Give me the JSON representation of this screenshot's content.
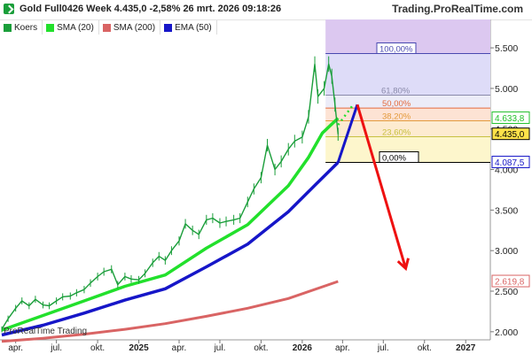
{
  "header": {
    "title": "Gold Full0426 Week 4.435,0 -2,58% 26 mrt. 2026 09:18:26",
    "brand": "Trading.ProRealTime.com"
  },
  "legend": [
    {
      "label": "Koers",
      "color": "#1a9e3a"
    },
    {
      "label": "SMA (20)",
      "color": "#22e02c"
    },
    {
      "label": "SMA (200)",
      "color": "#d96464"
    },
    {
      "label": "EMA (50)",
      "color": "#1616c8"
    }
  ],
  "footer": {
    "note": "ProRealTime Trading"
  },
  "chart_data": {
    "type": "line",
    "y_axis": {
      "ticks": [
        {
          "v": 2000,
          "label": "2.000"
        },
        {
          "v": 2500,
          "label": "2.500"
        },
        {
          "v": 3000,
          "label": "3.000"
        },
        {
          "v": 3500,
          "label": "3.500"
        },
        {
          "v": 4000,
          "label": "4.000"
        },
        {
          "v": 4500,
          "label": "4.500"
        },
        {
          "v": 5000,
          "label": "5.000"
        },
        {
          "v": 5500,
          "label": "5.500"
        }
      ],
      "range": [
        1900,
        5850
      ]
    },
    "x_axis": {
      "range": [
        "2024-02-26",
        "2027-02-25"
      ],
      "ticks": [
        {
          "date": "2024-04-01",
          "label": "apr.",
          "bold": false
        },
        {
          "date": "2024-07-01",
          "label": "jul.",
          "bold": false
        },
        {
          "date": "2024-10-01",
          "label": "okt.",
          "bold": false
        },
        {
          "date": "2025-01-01",
          "label": "2025",
          "bold": true
        },
        {
          "date": "2025-04-01",
          "label": "apr.",
          "bold": false
        },
        {
          "date": "2025-07-01",
          "label": "jul.",
          "bold": false
        },
        {
          "date": "2025-10-01",
          "label": "okt.",
          "bold": false
        },
        {
          "date": "2026-01-01",
          "label": "2026",
          "bold": true
        },
        {
          "date": "2026-04-01",
          "label": "apr.",
          "bold": false
        },
        {
          "date": "2026-07-01",
          "label": "jul.",
          "bold": false
        },
        {
          "date": "2026-10-01",
          "label": "okt.",
          "bold": false
        },
        {
          "date": "2027-01-01",
          "label": "2027",
          "bold": true
        }
      ]
    },
    "price_line": [
      [
        "2024-03-01",
        2030
      ],
      [
        "2024-03-15",
        2160
      ],
      [
        "2024-04-01",
        2290
      ],
      [
        "2024-04-15",
        2380
      ],
      [
        "2024-05-01",
        2320
      ],
      [
        "2024-05-15",
        2400
      ],
      [
        "2024-06-01",
        2330
      ],
      [
        "2024-06-15",
        2320
      ],
      [
        "2024-07-01",
        2380
      ],
      [
        "2024-07-15",
        2430
      ],
      [
        "2024-08-01",
        2440
      ],
      [
        "2024-08-15",
        2480
      ],
      [
        "2024-09-01",
        2520
      ],
      [
        "2024-09-15",
        2600
      ],
      [
        "2024-10-01",
        2680
      ],
      [
        "2024-10-15",
        2740
      ],
      [
        "2024-11-01",
        2770
      ],
      [
        "2024-11-15",
        2580
      ],
      [
        "2024-12-01",
        2680
      ],
      [
        "2024-12-15",
        2650
      ],
      [
        "2025-01-01",
        2640
      ],
      [
        "2025-01-15",
        2720
      ],
      [
        "2025-02-01",
        2850
      ],
      [
        "2025-02-15",
        2930
      ],
      [
        "2025-03-01",
        2880
      ],
      [
        "2025-03-15",
        3000
      ],
      [
        "2025-04-01",
        3120
      ],
      [
        "2025-04-15",
        3330
      ],
      [
        "2025-05-01",
        3250
      ],
      [
        "2025-05-15",
        3200
      ],
      [
        "2025-06-01",
        3380
      ],
      [
        "2025-06-15",
        3400
      ],
      [
        "2025-07-01",
        3340
      ],
      [
        "2025-07-15",
        3360
      ],
      [
        "2025-08-01",
        3380
      ],
      [
        "2025-08-15",
        3400
      ],
      [
        "2025-09-01",
        3600
      ],
      [
        "2025-09-15",
        3760
      ],
      [
        "2025-10-01",
        3900
      ],
      [
        "2025-10-15",
        4300
      ],
      [
        "2025-11-01",
        4000
      ],
      [
        "2025-11-15",
        4100
      ],
      [
        "2025-12-01",
        4250
      ],
      [
        "2025-12-15",
        4350
      ],
      [
        "2026-01-01",
        4400
      ],
      [
        "2026-01-15",
        4650
      ],
      [
        "2026-01-29",
        5300
      ],
      [
        "2026-02-05",
        4900
      ],
      [
        "2026-02-19",
        5000
      ],
      [
        "2026-03-01",
        5300
      ],
      [
        "2026-03-08",
        5150
      ],
      [
        "2026-03-15",
        4800
      ],
      [
        "2026-03-22",
        4435
      ]
    ],
    "series": [
      {
        "name": "SMA (20)",
        "color": "#22e02c",
        "points": [
          [
            "2024-03-01",
            2020
          ],
          [
            "2024-06-01",
            2200
          ],
          [
            "2024-09-01",
            2380
          ],
          [
            "2024-12-01",
            2560
          ],
          [
            "2025-03-01",
            2700
          ],
          [
            "2025-06-01",
            3030
          ],
          [
            "2025-09-01",
            3320
          ],
          [
            "2025-12-01",
            3800
          ],
          [
            "2026-01-15",
            4150
          ],
          [
            "2026-02-15",
            4450
          ],
          [
            "2026-03-22",
            4633.8
          ]
        ],
        "end_label": "4.633,8"
      },
      {
        "name": "SMA (200)",
        "color": "#d96464",
        "points": [
          [
            "2024-03-01",
            1880
          ],
          [
            "2024-06-01",
            1920
          ],
          [
            "2024-09-01",
            1970
          ],
          [
            "2024-12-01",
            2030
          ],
          [
            "2025-03-01",
            2100
          ],
          [
            "2025-06-01",
            2190
          ],
          [
            "2025-09-01",
            2290
          ],
          [
            "2025-12-01",
            2410
          ],
          [
            "2026-03-22",
            2619.8
          ]
        ],
        "end_label": "2.619,8"
      },
      {
        "name": "EMA (50)",
        "color": "#1616c8",
        "points": [
          [
            "2024-03-01",
            1960
          ],
          [
            "2024-06-01",
            2080
          ],
          [
            "2024-09-01",
            2230
          ],
          [
            "2024-12-01",
            2390
          ],
          [
            "2025-03-01",
            2530
          ],
          [
            "2025-06-01",
            2800
          ],
          [
            "2025-09-01",
            3080
          ],
          [
            "2025-12-01",
            3480
          ],
          [
            "2026-02-01",
            3820
          ],
          [
            "2026-03-22",
            4087.5
          ]
        ],
        "end_label": "4.087,5"
      }
    ],
    "current_price": {
      "value": 4435,
      "label": "4.435,0"
    },
    "fibonacci": {
      "x_start": "2026-02-22",
      "x_end": "2027-02-25",
      "high": 5430,
      "low": 4087.5,
      "levels": [
        {
          "label": "100,00%",
          "value": 5430,
          "color": "#4848b0"
        },
        {
          "label": "61,80%",
          "value": 4917,
          "color": "#8a8aaa"
        },
        {
          "label": "50,00%",
          "value": 4758,
          "color": "#e46a3c"
        },
        {
          "label": "38,20%",
          "value": 4600,
          "color": "#e49a3c"
        },
        {
          "label": "23,60%",
          "value": 4404,
          "color": "#c8c040"
        },
        {
          "label": "0,00%",
          "value": 4087.5,
          "color": "#000000"
        }
      ],
      "upper_zone_top": 5850
    },
    "projection_up": [
      [
        "2026-03-22",
        4087.5
      ],
      [
        "2026-05-04",
        4800
      ]
    ],
    "projection_dotted": [
      [
        "2026-03-22",
        4550
      ],
      [
        "2026-04-25",
        4800
      ]
    ],
    "projection_down": [
      [
        "2026-05-04",
        4800
      ],
      [
        "2026-08-20",
        2780
      ]
    ]
  }
}
